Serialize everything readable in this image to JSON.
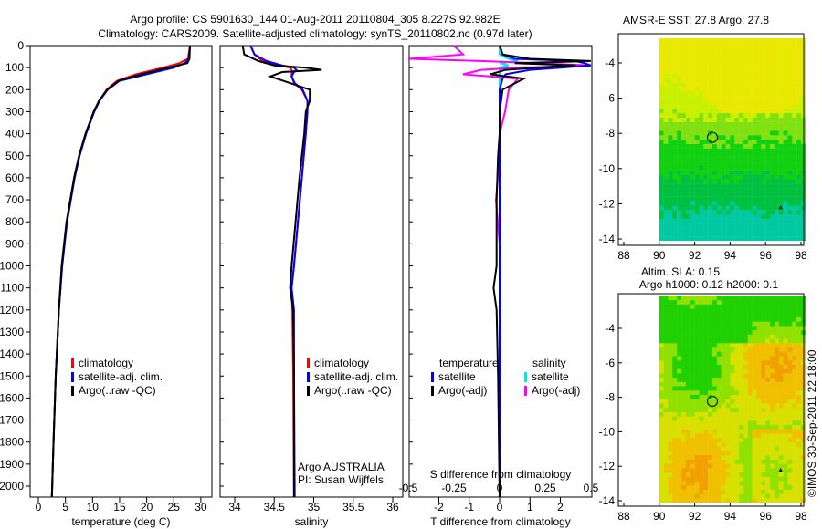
{
  "title_line1": "Argo profile: CS 5901630_144 01-Aug-2011 20110804_305 8.227S 92.982E",
  "title_line2": "Climatology: CARS2009. Satellite-adjusted climatology: synTS_20110802.nc (0.97d later)",
  "credit": "©IMOS 30-Sep-2011 22:18:00",
  "colors": {
    "climatology": "#ff0000",
    "satellite": "#0000ff",
    "argo": "#000000",
    "sal_satellite": "#00e5ee",
    "sal_argo": "#ff00ff"
  },
  "chart_data": [
    {
      "type": "line",
      "xlabel": "temperature (deg C)",
      "ylabel": "",
      "xlim": [
        -2,
        31
      ],
      "ylim": [
        2050,
        0
      ],
      "xticks": [
        "0",
        "5",
        "10",
        "15",
        "20",
        "25",
        "30"
      ],
      "yticks": [
        "0",
        "100",
        "200",
        "300",
        "400",
        "500",
        "600",
        "700",
        "800",
        "900",
        "1000",
        "1100",
        "1200",
        "1300",
        "1400",
        "1500",
        "1600",
        "1700",
        "1800",
        "1900",
        "2000"
      ],
      "legend": [
        "climatology",
        "satellite-adj. clim.",
        "Argo(..raw -QC)"
      ],
      "depth": [
        0,
        60,
        80,
        100,
        130,
        160,
        200,
        250,
        300,
        400,
        500,
        600,
        800,
        1000,
        1200,
        1500,
        1800,
        2050
      ],
      "series": [
        {
          "name": "climatology",
          "values": [
            28,
            27.6,
            26,
            23,
            18,
            14.5,
            12.6,
            11.3,
            10.3,
            8.8,
            7.6,
            6.7,
            5.3,
            4.4,
            3.8,
            3.2,
            2.8,
            2.5
          ]
        },
        {
          "name": "satellite-adj. clim.",
          "values": [
            28,
            27.8,
            27,
            25,
            20,
            15,
            12.8,
            11.3,
            10.3,
            8.8,
            7.6,
            6.7,
            5.3,
            4.4,
            3.8,
            3.2,
            2.8,
            2.5
          ]
        },
        {
          "name": "Argo(..raw -QC)",
          "values": [
            28,
            27.9,
            27.5,
            24,
            19,
            14.8,
            12.7,
            11.2,
            10.2,
            8.7,
            7.5,
            6.6,
            5.2,
            4.3,
            3.8,
            3.2,
            2.8,
            2.5
          ]
        }
      ]
    },
    {
      "type": "line",
      "xlabel": "salinity",
      "xlim": [
        33.85,
        36.15
      ],
      "ylim": [
        2050,
        0
      ],
      "xticks": [
        "34",
        "34.5",
        "35",
        "35.5",
        "36"
      ],
      "legend": [
        "climatology",
        "satellite-adj. clim.",
        "Argo(..raw -QC)"
      ],
      "annotation": [
        "Argo AUSTRALIA",
        "PI: Susan Wijffels"
      ],
      "depth": [
        0,
        40,
        70,
        90,
        100,
        110,
        120,
        140,
        170,
        200,
        250,
        300,
        400,
        600,
        800,
        1000,
        1100,
        1200,
        1500,
        2050
      ],
      "series": [
        {
          "name": "climatology",
          "values": [
            34.2,
            34.25,
            34.35,
            34.55,
            34.7,
            34.72,
            34.72,
            34.72,
            34.75,
            34.85,
            34.92,
            34.92,
            34.9,
            34.85,
            34.8,
            34.75,
            34.72,
            34.73,
            34.74,
            34.75
          ]
        },
        {
          "name": "satellite-adj. clim.",
          "values": [
            34.2,
            34.25,
            34.4,
            34.6,
            34.75,
            34.78,
            34.75,
            34.72,
            34.76,
            34.86,
            34.92,
            34.92,
            34.9,
            34.85,
            34.8,
            34.75,
            34.72,
            34.75,
            34.75,
            34.76
          ]
        },
        {
          "name": "Argo(..raw -QC)",
          "values": [
            34.1,
            34.12,
            34.3,
            34.5,
            34.9,
            35.1,
            34.6,
            34.45,
            34.7,
            34.95,
            34.95,
            34.9,
            34.88,
            34.82,
            34.77,
            34.72,
            34.7,
            34.74,
            34.75,
            34.75
          ]
        }
      ]
    },
    {
      "type": "line",
      "xlabel": "T difference from climatology",
      "xlabel2": "S difference from climatology",
      "xlim": [
        -3,
        3
      ],
      "ylim": [
        2050,
        0
      ],
      "xticks": [
        "-2",
        "-1",
        "0",
        "1",
        "2"
      ],
      "xticks2": [
        "-0.5",
        "-0.25",
        "0",
        "0.25",
        "0.5"
      ],
      "legend_headers": [
        "temperature",
        "salinity"
      ],
      "legend": [
        "satellite",
        "Argo(-adj)",
        "satellite",
        "Argo(-adj)"
      ],
      "depth": [
        0,
        40,
        60,
        70,
        80,
        90,
        100,
        110,
        130,
        150,
        200,
        300,
        400,
        500,
        700,
        900,
        1000,
        1100,
        1200,
        1500,
        2050
      ],
      "series": [
        {
          "name": "temperature satellite",
          "values": [
            0,
            0.1,
            0.5,
            2.5,
            2.8,
            3,
            2,
            1,
            0.2,
            0.1,
            0,
            0,
            0,
            0,
            0,
            0,
            0,
            0,
            0,
            0,
            0
          ]
        },
        {
          "name": "temperature Argo(-adj)",
          "values": [
            0,
            0.1,
            1,
            3,
            0.5,
            2.5,
            1.2,
            0.2,
            -0.3,
            0.8,
            0.1,
            0,
            0,
            -0.05,
            -0.1,
            -0.1,
            -0.1,
            -0.2,
            -0.1,
            -0.05,
            0
          ]
        },
        {
          "name": "salinity satellite",
          "values": [
            0,
            0,
            0.05,
            0.1,
            0,
            0.05,
            0,
            0,
            0,
            0,
            0,
            0,
            0,
            0,
            0,
            0,
            0,
            0,
            0,
            0,
            0
          ]
        },
        {
          "name": "salinity Argo(-adj)",
          "values": [
            -0.25,
            -0.2,
            -0.5,
            -0.1,
            0.2,
            0.5,
            0.1,
            -0.1,
            -0.2,
            0.1,
            0.05,
            0.03,
            0,
            0,
            -0.02,
            0,
            0,
            0,
            0,
            0,
            0
          ]
        }
      ]
    },
    {
      "type": "heatmap",
      "title": "AMSR-E SST: 27.8 Argo: 27.8",
      "xlim": [
        87.7,
        98.2
      ],
      "ylim": [
        -14.2,
        -2.2
      ],
      "xticks": [
        "88",
        "90",
        "92",
        "94",
        "96",
        "98"
      ],
      "yticks": [
        "-4",
        "-6",
        "-8",
        "-10",
        "-12",
        "-14"
      ],
      "argo_position": [
        93.0,
        -8.23
      ]
    },
    {
      "type": "heatmap",
      "title": "Altim. SLA: 0.15",
      "subtitle": "Argo h1000: 0.12 h2000: 0.1",
      "xlim": [
        87.7,
        98.2
      ],
      "ylim": [
        -14.2,
        -2.2
      ],
      "xticks": [
        "88",
        "90",
        "92",
        "94",
        "96",
        "98"
      ],
      "yticks": [
        "-4",
        "-6",
        "-8",
        "-10",
        "-12",
        "-14"
      ],
      "argo_position": [
        93.0,
        -8.23
      ]
    }
  ]
}
